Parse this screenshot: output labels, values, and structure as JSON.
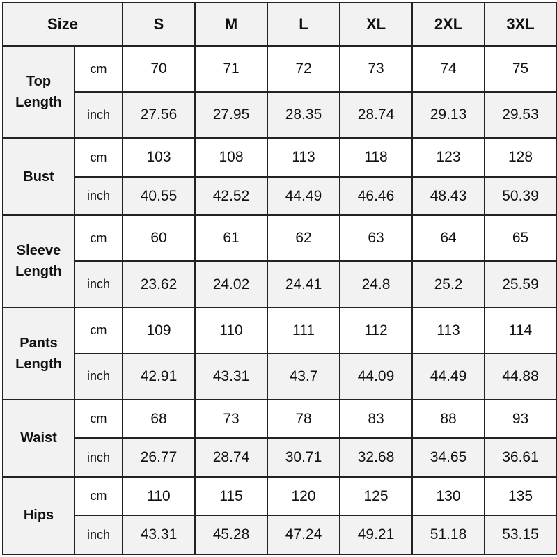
{
  "header": {
    "size_label": "Size",
    "sizes": [
      "S",
      "M",
      "L",
      "XL",
      "2XL",
      "3XL"
    ]
  },
  "measurements": [
    {
      "name": "Top\nLength",
      "cm_label": "cm",
      "inch_label": "inch",
      "cm": [
        "70",
        "71",
        "72",
        "73",
        "74",
        "75"
      ],
      "inch": [
        "27.56",
        "27.95",
        "28.35",
        "28.74",
        "29.13",
        "29.53"
      ]
    },
    {
      "name": "Bust",
      "cm_label": "cm",
      "inch_label": "inch",
      "cm": [
        "103",
        "108",
        "113",
        "118",
        "123",
        "128"
      ],
      "inch": [
        "40.55",
        "42.52",
        "44.49",
        "46.46",
        "48.43",
        "50.39"
      ]
    },
    {
      "name": "Sleeve\nLength",
      "cm_label": "cm",
      "inch_label": "inch",
      "cm": [
        "60",
        "61",
        "62",
        "63",
        "64",
        "65"
      ],
      "inch": [
        "23.62",
        "24.02",
        "24.41",
        "24.8",
        "25.2",
        "25.59"
      ]
    },
    {
      "name": "Pants\nLength",
      "cm_label": "cm",
      "inch_label": "inch",
      "cm": [
        "109",
        "110",
        "111",
        "112",
        "113",
        "114"
      ],
      "inch": [
        "42.91",
        "43.31",
        "43.7",
        "44.09",
        "44.49",
        "44.88"
      ]
    },
    {
      "name": "Waist",
      "cm_label": "cm",
      "inch_label": "inch",
      "cm": [
        "68",
        "73",
        "78",
        "83",
        "88",
        "93"
      ],
      "inch": [
        "26.77",
        "28.74",
        "30.71",
        "32.68",
        "34.65",
        "36.61"
      ]
    },
    {
      "name": "Hips",
      "cm_label": "cm",
      "inch_label": "inch",
      "cm": [
        "110",
        "115",
        "120",
        "125",
        "130",
        "135"
      ],
      "inch": [
        "43.31",
        "45.28",
        "47.24",
        "49.21",
        "51.18",
        "53.15"
      ]
    }
  ],
  "colors": {
    "header_bg": "#f2f2f2",
    "border": "#222222"
  }
}
